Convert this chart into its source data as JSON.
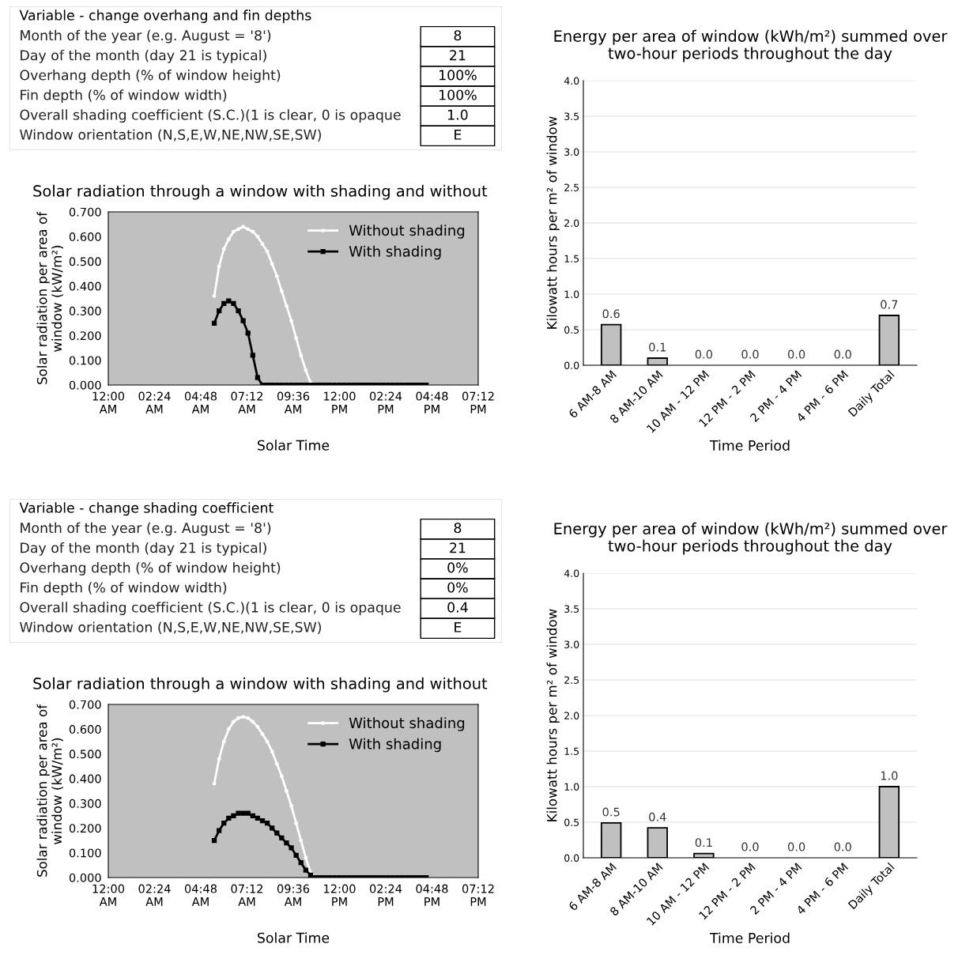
{
  "chart_data": [
    {
      "type": "other",
      "title": "Variable - change overhang and fin depths",
      "categories": [
        "Month of the year (e.g. August = '8')",
        "Day of the month (day 21 is typical)",
        "Overhang depth (% of window height)",
        "Fin depth (% of window width)",
        "Overall shading coefficient (S.C.)(1 is clear, 0 is opaque",
        "Window orientation (N,S,E,W,NE,NW,SE,SW)"
      ],
      "value_labels": [
        "8",
        "21",
        "100%",
        "100%",
        "1.0",
        "E"
      ]
    },
    {
      "type": "bar",
      "title": "Energy per area of window (kWh/m²) summed over two-hour periods throughout the day",
      "xlabel": "Time Period",
      "ylabel": "Kilowatt hours per m² of window",
      "categories": [
        "6 AM-8 AM",
        "8 AM-10 AM",
        "10 AM - 12 PM",
        "12 PM - 2 PM",
        "2 PM - 4 PM",
        "4 PM - 6 PM",
        "Daily Total"
      ],
      "values": [
        0.57,
        0.1,
        0,
        0,
        0,
        0,
        0.7
      ],
      "value_labels": [
        "0.6",
        "0.1",
        "0.0",
        "0.0",
        "0.0",
        "0.0",
        "0.7"
      ],
      "color": "#c0c0c0",
      "ylim": [
        0,
        4
      ],
      "yticks": [
        {
          "value": 0,
          "label": "0.0"
        },
        {
          "value": 0.5,
          "label": "0.5"
        },
        {
          "value": 1,
          "label": "1.0"
        },
        {
          "value": 1.5,
          "label": "1.5"
        },
        {
          "value": 2,
          "label": "2.0"
        },
        {
          "value": 2.5,
          "label": "2.5"
        },
        {
          "value": 3,
          "label": "3.0"
        },
        {
          "value": 3.5,
          "label": "3.5"
        },
        {
          "value": 4,
          "label": "4.0"
        }
      ],
      "grid": "y"
    },
    {
      "type": "line",
      "title": "Solar radiation through a window with shading and without",
      "xlabel": "Solar Time",
      "ylabel": "Solar radiation per area of\nwindow (kW/m²)",
      "x": [
        5.5,
        5.75,
        6.0,
        6.25,
        6.5,
        6.75,
        7.0,
        7.25,
        7.5,
        7.75,
        8.0,
        8.25,
        8.5,
        8.75,
        9.0,
        9.25,
        9.5,
        9.75,
        10.0,
        10.25,
        10.5,
        10.75,
        11.0,
        11.25,
        11.5,
        11.75,
        12.0,
        12.25,
        12.5,
        12.75,
        13.0,
        13.25,
        13.5,
        13.75,
        14.0,
        14.25,
        14.5,
        14.75,
        15.0,
        15.25,
        15.5,
        15.75,
        16.0,
        16.25,
        16.5
      ],
      "series": [
        {
          "name": "Without shading",
          "color": "#ffffff",
          "marker": "circle",
          "values": [
            0.36,
            0.48,
            0.55,
            0.59,
            0.62,
            0.63,
            0.64,
            0.63,
            0.62,
            0.6,
            0.57,
            0.54,
            0.49,
            0.44,
            0.38,
            0.32,
            0.26,
            0.19,
            0.12,
            0.06,
            0.01,
            0,
            0,
            0,
            0,
            0,
            0,
            0,
            0,
            0,
            0,
            0,
            0,
            0,
            0,
            0,
            0,
            0,
            0,
            0,
            0,
            0,
            0,
            0,
            0
          ]
        },
        {
          "name": "With shading",
          "color": "#000000",
          "marker": "square",
          "values": [
            0.25,
            0.3,
            0.33,
            0.34,
            0.33,
            0.3,
            0.26,
            0.21,
            0.12,
            0.03,
            0,
            0,
            0,
            0,
            0,
            0,
            0,
            0,
            0,
            0,
            0,
            0,
            0,
            0,
            0,
            0,
            0,
            0,
            0,
            0,
            0,
            0,
            0,
            0,
            0,
            0,
            0,
            0,
            0,
            0,
            0,
            0,
            0,
            0,
            0
          ]
        }
      ],
      "xlim": [
        0,
        19.2
      ],
      "xticks": [
        {
          "value": 0,
          "label": "12:00\nAM"
        },
        {
          "value": 2.4,
          "label": "02:24\nAM"
        },
        {
          "value": 4.8,
          "label": "04:48\nAM"
        },
        {
          "value": 7.2,
          "label": "07:12\nAM"
        },
        {
          "value": 9.6,
          "label": "09:36\nAM"
        },
        {
          "value": 12,
          "label": "12:00\nPM"
        },
        {
          "value": 14.4,
          "label": "02:24\nPM"
        },
        {
          "value": 16.8,
          "label": "04:48\nPM"
        },
        {
          "value": 19.2,
          "label": "07:12\nPM"
        }
      ],
      "ylim": [
        0,
        0.7
      ],
      "yticks": [
        {
          "value": 0,
          "label": "0.000"
        },
        {
          "value": 0.1,
          "label": "0.100"
        },
        {
          "value": 0.2,
          "label": "0.200"
        },
        {
          "value": 0.3,
          "label": "0.300"
        },
        {
          "value": 0.4,
          "label": "0.400"
        },
        {
          "value": 0.5,
          "label": "0.500"
        },
        {
          "value": 0.6,
          "label": "0.600"
        },
        {
          "value": 0.7,
          "label": "0.700"
        }
      ],
      "legend": "top right"
    },
    {
      "type": "other",
      "title": "Variable - change shading coefficient",
      "categories": [
        "Month of the year (e.g. August = '8')",
        "Day of the month (day 21 is typical)",
        "Overhang depth (% of window height)",
        "Fin depth (% of window width)",
        "Overall shading coefficient (S.C.)(1 is clear, 0 is opaque",
        "Window orientation (N,S,E,W,NE,NW,SE,SW)"
      ],
      "value_labels": [
        "8",
        "21",
        "0%",
        "0%",
        "0.4",
        "E"
      ]
    },
    {
      "type": "bar",
      "title": "Energy per area of window (kWh/m²) summed over two-hour periods throughout the day",
      "xlabel": "Time Period",
      "ylabel": "Kilowatt hours per m² of window",
      "categories": [
        "6 AM-8 AM",
        "8 AM-10 AM",
        "10 AM - 12 PM",
        "12 PM - 2 PM",
        "2 PM - 4 PM",
        "4 PM - 6 PM",
        "Daily Total"
      ],
      "values": [
        0.49,
        0.42,
        0.06,
        0,
        0,
        0,
        1.0
      ],
      "value_labels": [
        "0.5",
        "0.4",
        "0.1",
        "0.0",
        "0.0",
        "0.0",
        "1.0"
      ],
      "color": "#c0c0c0",
      "ylim": [
        0,
        4
      ],
      "yticks": [
        {
          "value": 0,
          "label": "0.0"
        },
        {
          "value": 0.5,
          "label": "0.5"
        },
        {
          "value": 1,
          "label": "1.0"
        },
        {
          "value": 1.5,
          "label": "1.5"
        },
        {
          "value": 2,
          "label": "2.0"
        },
        {
          "value": 2.5,
          "label": "2.5"
        },
        {
          "value": 3,
          "label": "3.0"
        },
        {
          "value": 3.5,
          "label": "3.5"
        },
        {
          "value": 4,
          "label": "4.0"
        }
      ],
      "grid": "y"
    },
    {
      "type": "line",
      "title": "Solar radiation through a window with shading and without",
      "xlabel": "Solar Time",
      "ylabel": "Solar radiation per area of\nwindow (kW/m²)",
      "x": [
        5.5,
        5.75,
        6.0,
        6.25,
        6.5,
        6.75,
        7.0,
        7.25,
        7.5,
        7.75,
        8.0,
        8.25,
        8.5,
        8.75,
        9.0,
        9.25,
        9.5,
        9.75,
        10.0,
        10.25,
        10.5,
        10.75,
        11.0,
        11.25,
        11.5,
        11.75,
        12.0,
        12.25,
        12.5,
        12.75,
        13.0,
        13.25,
        13.5,
        13.75,
        14.0,
        14.25,
        14.5,
        14.75,
        15.0,
        15.25,
        15.5,
        15.75,
        16.0,
        16.25,
        16.5
      ],
      "series": [
        {
          "name": "Without shading",
          "color": "#ffffff",
          "marker": "circle",
          "values": [
            0.38,
            0.48,
            0.55,
            0.6,
            0.63,
            0.645,
            0.65,
            0.645,
            0.63,
            0.61,
            0.58,
            0.55,
            0.51,
            0.46,
            0.41,
            0.35,
            0.29,
            0.22,
            0.15,
            0.08,
            0.02,
            0,
            0,
            0,
            0,
            0,
            0,
            0,
            0,
            0,
            0,
            0,
            0,
            0,
            0,
            0,
            0,
            0,
            0,
            0,
            0,
            0,
            0,
            0,
            0
          ]
        },
        {
          "name": "With shading",
          "color": "#000000",
          "marker": "square",
          "values": [
            0.15,
            0.19,
            0.22,
            0.24,
            0.25,
            0.26,
            0.26,
            0.26,
            0.25,
            0.24,
            0.23,
            0.22,
            0.2,
            0.18,
            0.16,
            0.14,
            0.12,
            0.09,
            0.06,
            0.03,
            0.01,
            0,
            0,
            0,
            0,
            0,
            0,
            0,
            0,
            0,
            0,
            0,
            0,
            0,
            0,
            0,
            0,
            0,
            0,
            0,
            0,
            0,
            0,
            0,
            0
          ]
        }
      ],
      "xlim": [
        0,
        19.2
      ],
      "xticks": [
        {
          "value": 0,
          "label": "12:00\nAM"
        },
        {
          "value": 2.4,
          "label": "02:24\nAM"
        },
        {
          "value": 4.8,
          "label": "04:48\nAM"
        },
        {
          "value": 7.2,
          "label": "07:12\nAM"
        },
        {
          "value": 9.6,
          "label": "09:36\nAM"
        },
        {
          "value": 12,
          "label": "12:00\nPM"
        },
        {
          "value": 14.4,
          "label": "02:24\nPM"
        },
        {
          "value": 16.8,
          "label": "04:48\nPM"
        },
        {
          "value": 19.2,
          "label": "07:12\nPM"
        }
      ],
      "ylim": [
        0,
        0.7
      ],
      "yticks": [
        {
          "value": 0,
          "label": "0.000"
        },
        {
          "value": 0.1,
          "label": "0.100"
        },
        {
          "value": 0.2,
          "label": "0.200"
        },
        {
          "value": 0.3,
          "label": "0.300"
        },
        {
          "value": 0.4,
          "label": "0.400"
        },
        {
          "value": 0.5,
          "label": "0.500"
        },
        {
          "value": 0.6,
          "label": "0.600"
        },
        {
          "value": 0.7,
          "label": "0.700"
        }
      ],
      "legend": "top right"
    }
  ]
}
